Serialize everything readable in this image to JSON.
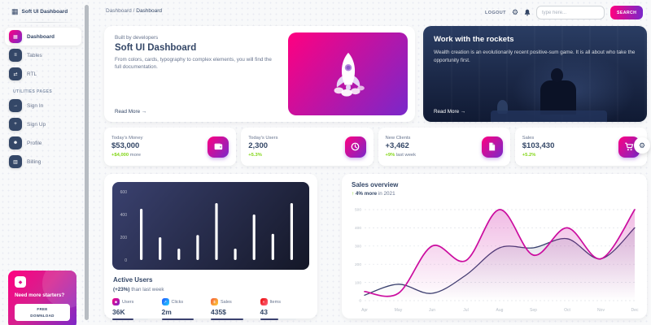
{
  "app": {
    "logo_title": "Soft UI Dashboard"
  },
  "theme": {
    "accent_gradient": [
      "#7928CA",
      "#FF0080"
    ],
    "success": "#82d616",
    "dark": "#344767",
    "pink_line": "#cb0c9f",
    "navy_line": "#3a416f"
  },
  "sidebar": {
    "items": [
      {
        "label": "Dashboard",
        "icon": "dashboard-icon",
        "glyph": "▦",
        "active": true
      },
      {
        "label": "Tables",
        "icon": "tables-icon",
        "glyph": "≡",
        "active": false
      },
      {
        "label": "RTL",
        "icon": "rtl-icon",
        "glyph": "⇄",
        "active": false
      }
    ],
    "section_label": "UTILITIES PAGES",
    "utility_items": [
      {
        "label": "Sign In",
        "icon": "sign-in-icon",
        "glyph": "→",
        "active": false
      },
      {
        "label": "Sign Up",
        "icon": "sign-up-icon",
        "glyph": "+",
        "active": false
      },
      {
        "label": "Profile",
        "icon": "profile-icon",
        "glyph": "☻",
        "active": false
      },
      {
        "label": "Billing",
        "icon": "billing-icon",
        "glyph": "▥",
        "active": false
      }
    ],
    "promo": {
      "title": "Need more starters?",
      "icon": "gem-icon",
      "icon_glyph": "◆",
      "button_label": "FREE\nDOWNLOAD"
    }
  },
  "header": {
    "breadcrumb": {
      "root": "Dashboard",
      "separator": "/",
      "current": "Dashboard"
    },
    "logout_label": "LOGOUT",
    "search": {
      "placeholder": "type here...",
      "button_label": "SEARCH"
    }
  },
  "cards": {
    "hero": {
      "eyebrow": "Built by developers",
      "title": "Soft UI Dashboard",
      "body": "From colors, cards, typography to complex elements, you will find the full documentation.",
      "link_label": "Read More",
      "arrow": "→"
    },
    "rockets": {
      "title": "Work with the rockets",
      "body": "Wealth creation is an evolutionarily recent positive-sum game. It is all about who take the opportunity first.",
      "link_label": "Read More",
      "arrow": "→"
    }
  },
  "stats": [
    {
      "label": "Today's Money",
      "value": "$53,000",
      "delta": "+$4,000",
      "delta_rest": "more",
      "icon": "wallet-icon"
    },
    {
      "label": "Today's Users",
      "value": "2,300",
      "delta": "+5.3%",
      "delta_rest": "",
      "icon": "globe-icon"
    },
    {
      "label": "New Clients",
      "value": "+3,462",
      "delta": "+9%",
      "delta_rest": "last week",
      "icon": "document-icon"
    },
    {
      "label": "Sales",
      "value": "$103,430",
      "delta": "+5.2%",
      "delta_rest": "",
      "icon": "cart-icon"
    }
  ],
  "active_users": {
    "title": "Active Users",
    "highlight": "(+23%)",
    "subtitle": "than last week",
    "mini_stats": [
      {
        "label": "Users",
        "value": "36K",
        "progress": 60,
        "color_from": "#FF0080",
        "color_to": "#7928CA",
        "icon": "users-icon",
        "glyph": "☻"
      },
      {
        "label": "Clicks",
        "value": "2m",
        "progress": 90,
        "color_from": "#2152ff",
        "color_to": "#21d4fd",
        "icon": "clicks-icon",
        "glyph": "↗"
      },
      {
        "label": "Sales",
        "value": "435$",
        "progress": 90,
        "color_from": "#f5593d",
        "color_to": "#fbcf33",
        "icon": "sales-icon",
        "glyph": "$"
      },
      {
        "label": "Items",
        "value": "43",
        "progress": 50,
        "color_from": "#ea0606",
        "color_to": "#ff667c",
        "icon": "items-icon",
        "glyph": "×"
      }
    ]
  },
  "sales_overview": {
    "title": "Sales overview",
    "arrow": "↑",
    "highlight": "4% more",
    "subtitle": "in 2021"
  },
  "fab": {
    "icon": "gear-icon",
    "glyph": "⚙"
  },
  "chart_data": [
    {
      "type": "bar",
      "title": "Active Users",
      "categories": [
        "1",
        "2",
        "3",
        "4",
        "5",
        "6",
        "7",
        "8",
        "9"
      ],
      "values": [
        450,
        200,
        100,
        220,
        500,
        100,
        400,
        230,
        500
      ],
      "xlabel": "",
      "ylabel": "",
      "ylim": [
        0,
        600
      ],
      "yticks": [
        0,
        200,
        400,
        600
      ],
      "bar_color": "#ffffff",
      "grid": false,
      "legend": "none"
    },
    {
      "type": "line",
      "title": "Sales overview",
      "x": [
        "Apr",
        "May",
        "Jun",
        "Jul",
        "Aug",
        "Sep",
        "Oct",
        "Nov",
        "Dec"
      ],
      "series": [
        {
          "name": "dark",
          "color": "#3a416f",
          "fill_opacity": 0.16,
          "values": [
            30,
            90,
            40,
            140,
            290,
            290,
            340,
            230,
            400
          ]
        },
        {
          "name": "pink",
          "color": "#cb0c9f",
          "fill_opacity": 0.28,
          "values": [
            50,
            40,
            300,
            220,
            500,
            250,
            400,
            230,
            500
          ]
        }
      ],
      "xlabel": "",
      "ylabel": "",
      "ylim": [
        0,
        500
      ],
      "yticks": [
        0,
        100,
        200,
        300,
        400,
        500
      ],
      "grid": "dashed-horizontal",
      "legend": "none"
    }
  ]
}
